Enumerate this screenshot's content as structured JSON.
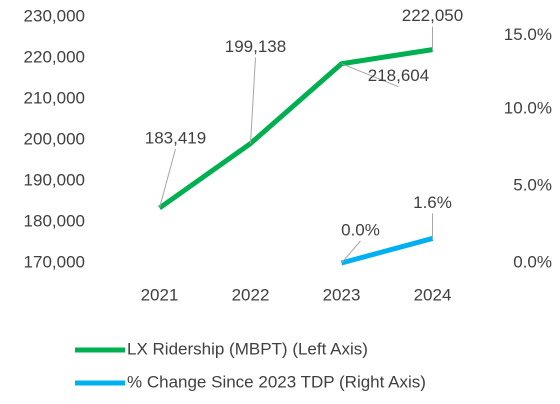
{
  "chart_data": {
    "type": "line",
    "categories": [
      "2021",
      "2022",
      "2023",
      "2024"
    ],
    "series": [
      {
        "name": "LX Ridership (MBPT) (Left Axis)",
        "color": "#00b050",
        "values": [
          183419,
          199138,
          218604,
          222050
        ],
        "value_labels": [
          "183,419",
          "199,138",
          "218,604",
          "222,050"
        ]
      },
      {
        "name": "% Change Since 2023 TDP (Right Axis)",
        "color": "#00b0f0",
        "axis": "y2",
        "values": [
          null,
          null,
          0,
          1.6
        ],
        "value_labels": [
          null,
          null,
          "0.0%",
          "1.6%"
        ]
      }
    ],
    "ylim": [
      170000,
      230000
    ],
    "yticks": [
      {
        "value": 170000,
        "label": "170,000"
      },
      {
        "value": 180000,
        "label": "180,000"
      },
      {
        "value": 190000,
        "label": "190,000"
      },
      {
        "value": 200000,
        "label": "200,000"
      },
      {
        "value": 210000,
        "label": "210,000"
      },
      {
        "value": 220000,
        "label": "220,000"
      },
      {
        "value": 230000,
        "label": "230,000"
      }
    ],
    "y2lim": [
      0,
      16
    ],
    "y2ticks": [
      {
        "value": 0,
        "label": "0.0%"
      },
      {
        "value": 5,
        "label": "5.0%"
      },
      {
        "value": 10,
        "label": "10.0%"
      },
      {
        "value": 15,
        "label": "15.0%"
      }
    ],
    "legend": "bottom"
  }
}
